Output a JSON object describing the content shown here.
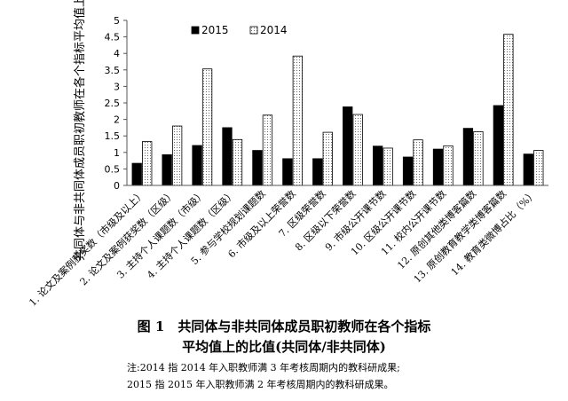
{
  "chart_data": {
    "type": "bar",
    "ylabel": "共同体与非共同体成员职初教师在各个指标平均值上的比值",
    "ylim": [
      0,
      5
    ],
    "yticks": [
      "0",
      "0.5",
      "1",
      "1.5",
      "2",
      "2.5",
      "3",
      "3.5",
      "4",
      "4.5",
      "5"
    ],
    "legend_position": "top-left",
    "categories": [
      "1. 论文及案例获奖数（市级及以上）",
      "2. 论文及案例获奖数（区级）",
      "3. 主持个人课题数（市级）",
      "4. 主持个人课题数（区级）",
      "5. 参与学校规划课题数",
      "6. 市级及以上荣誉数",
      "7. 区级荣誉数",
      "8. 区级以下荣誉数",
      "9. 市级公开课节数",
      "10. 区级公开课节数",
      "11. 校内公开课节数",
      "12. 原创其他类博客篇数",
      "13. 原创教育教学类博客篇数",
      "14. 教育类微博占比（%）"
    ],
    "series": [
      {
        "name": "2015",
        "color": "#000000",
        "pattern": "solid",
        "values": [
          0.67,
          0.93,
          1.21,
          1.75,
          1.06,
          0.81,
          0.81,
          2.38,
          1.19,
          0.86,
          1.1,
          1.73,
          2.42,
          0.95
        ]
      },
      {
        "name": "2014",
        "color": "#ffffff",
        "pattern": "dotted",
        "values": [
          1.33,
          1.8,
          3.53,
          1.39,
          2.13,
          3.92,
          1.61,
          2.15,
          1.13,
          1.38,
          1.2,
          1.63,
          4.58,
          1.06
        ]
      }
    ],
    "grid": false
  },
  "caption": {
    "line1": "图 1　共同体与非共同体成员职初教师在各个指标",
    "line2": "平均值上的比值(共同体/非共同体)"
  },
  "notes": {
    "line1": "注:2014 指 2014 年入职教师满 3 年考核周期内的教科研成果;",
    "line2": "2015 指 2015 年入职教师满 2 年考核周期内的教科研成果。"
  }
}
